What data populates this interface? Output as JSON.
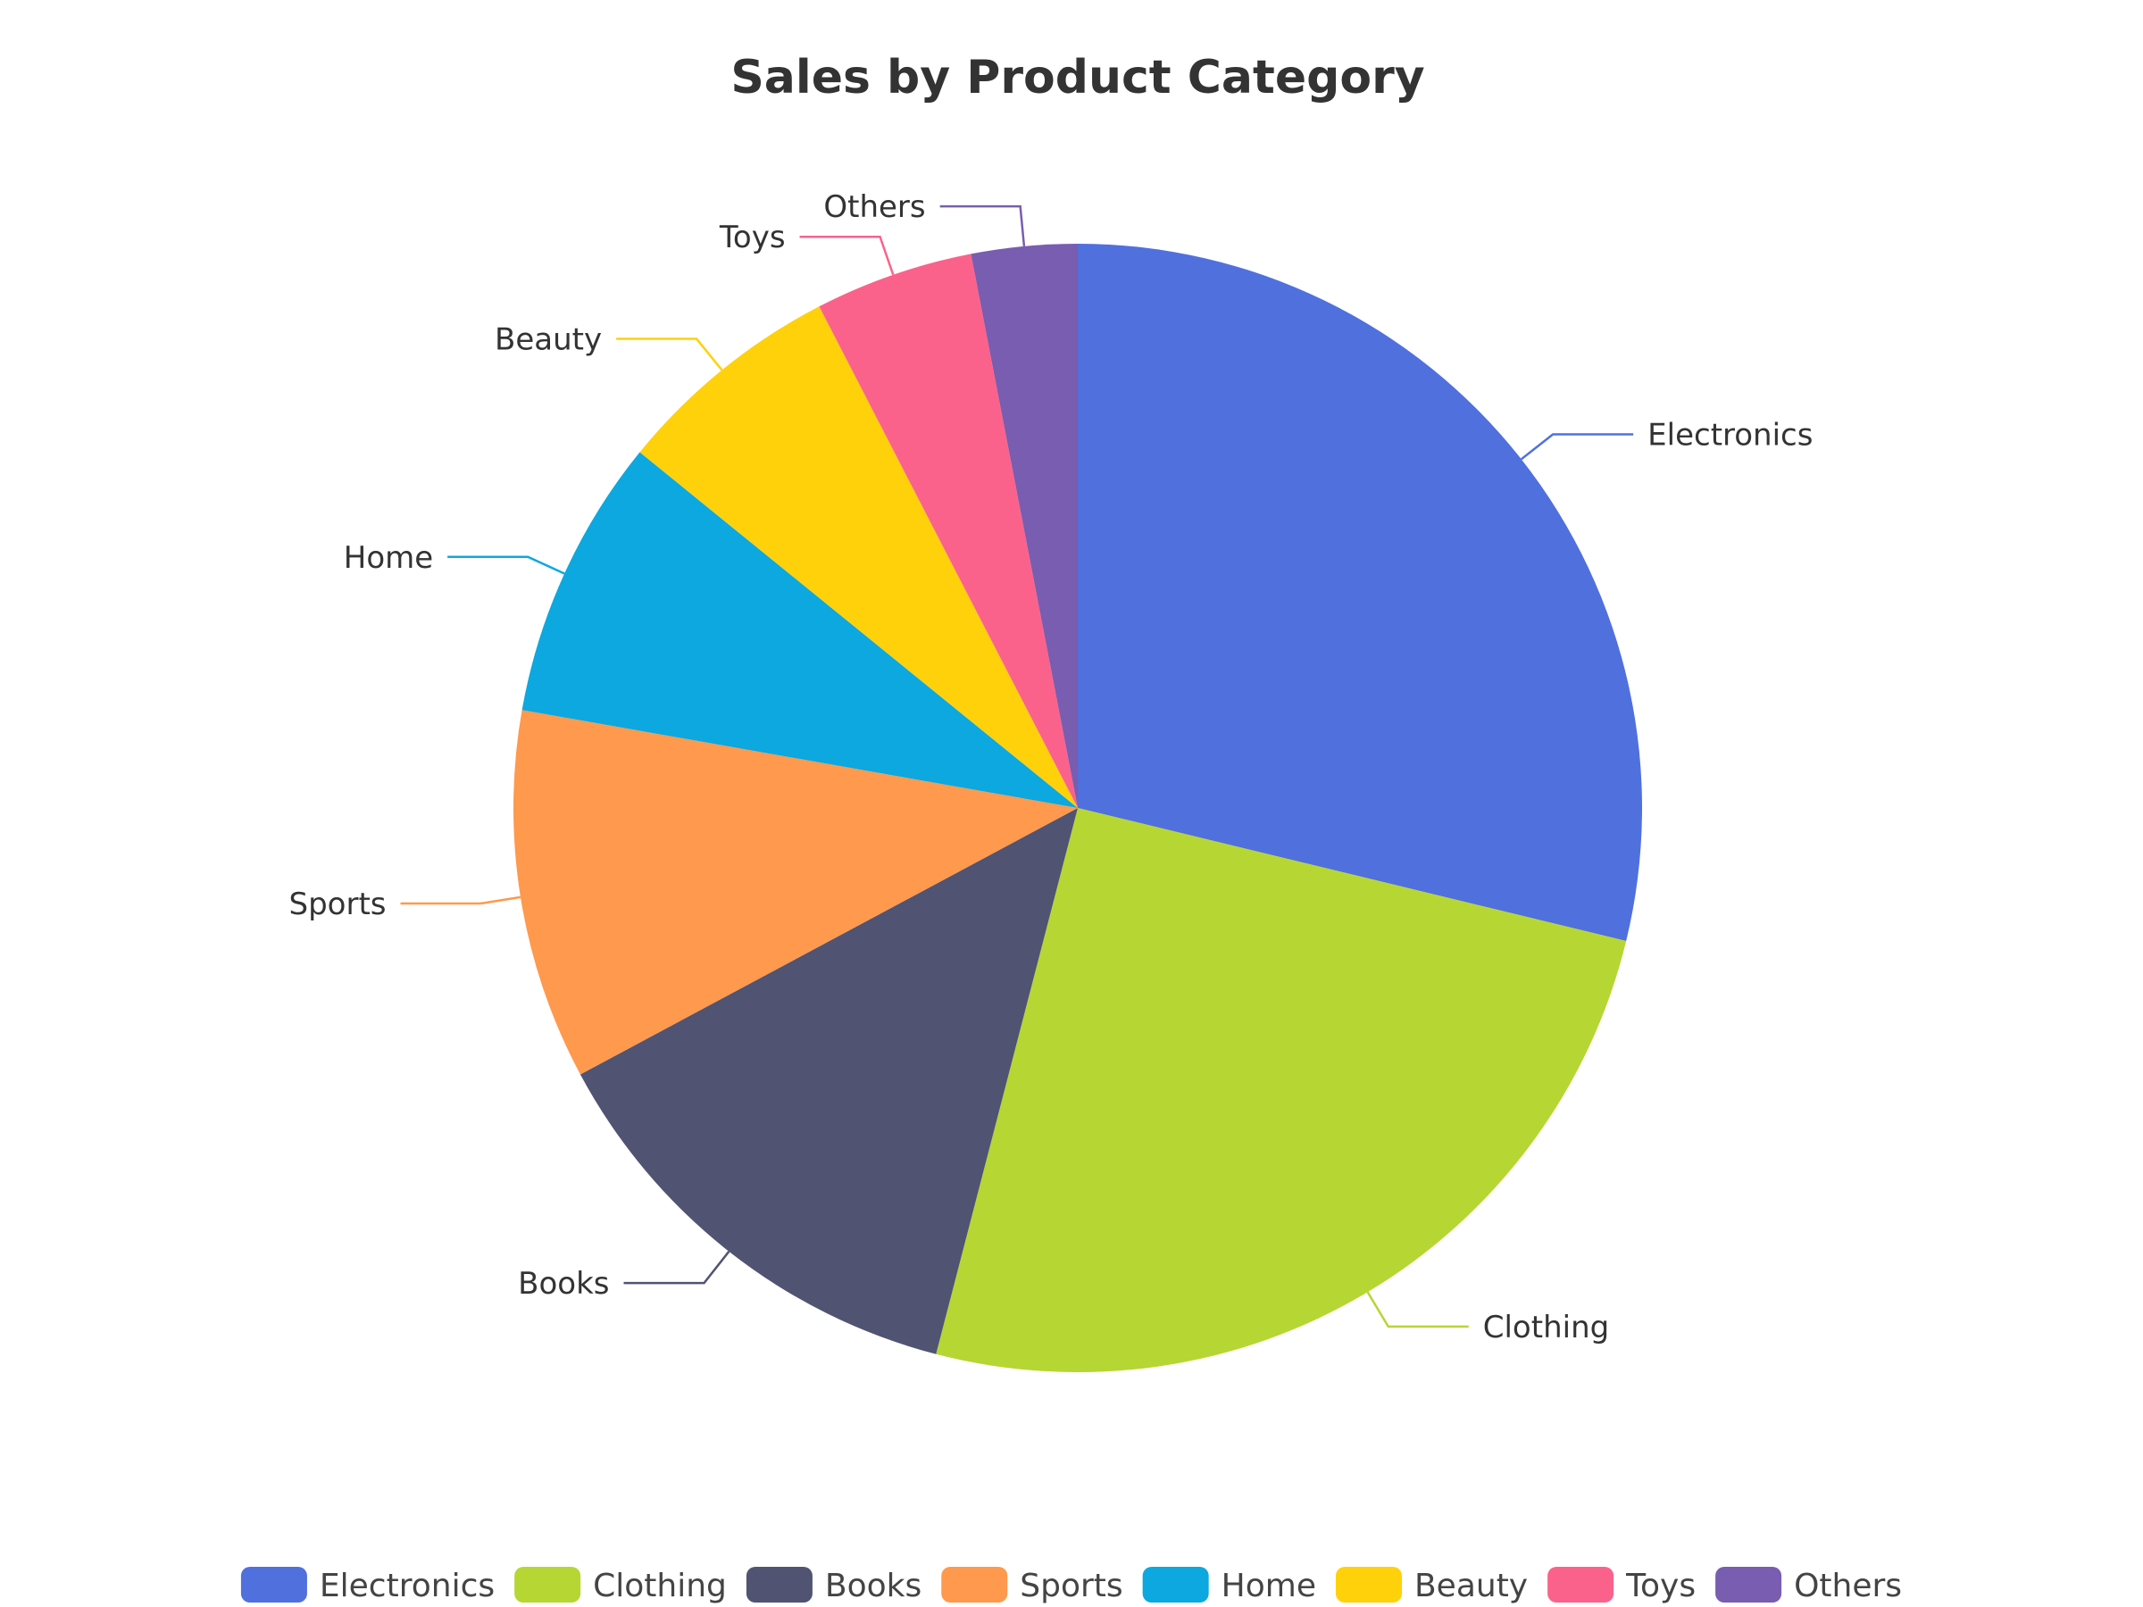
{
  "chart_data": {
    "type": "pie",
    "title": "Sales by Product Category",
    "categories": [
      "Electronics",
      "Clothing",
      "Books",
      "Sports",
      "Home",
      "Beauty",
      "Toys",
      "Others"
    ],
    "values": [
      28.5,
      25.0,
      13.0,
      10.5,
      8.0,
      6.5,
      4.5,
      3.0
    ],
    "colors": [
      "#5070dd",
      "#b6d634",
      "#505372",
      "#ff994d",
      "#0ca8df",
      "#ffd10a",
      "#fb628b",
      "#785db0"
    ],
    "legend": {
      "position": "bottom",
      "items": [
        "Electronics",
        "Clothing",
        "Books",
        "Sports",
        "Home",
        "Beauty",
        "Toys",
        "Others"
      ]
    },
    "start_angle_deg": 90,
    "direction": "clockwise"
  }
}
